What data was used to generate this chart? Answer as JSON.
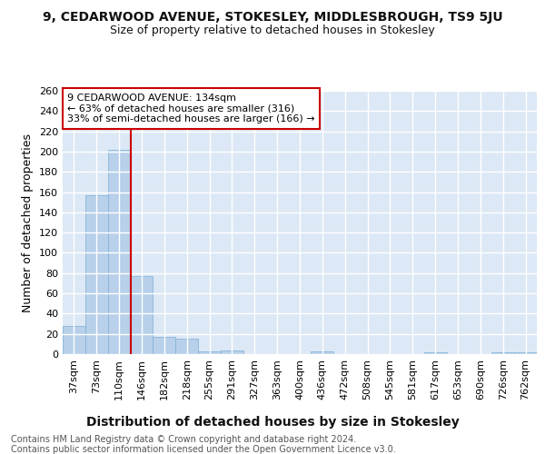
{
  "title": "9, CEDARWOOD AVENUE, STOKESLEY, MIDDLESBROUGH, TS9 5JU",
  "subtitle": "Size of property relative to detached houses in Stokesley",
  "xlabel": "Distribution of detached houses by size in Stokesley",
  "ylabel": "Number of detached properties",
  "bar_color": "#b8d0ea",
  "bar_edge_color": "#7aafd4",
  "categories": [
    "37sqm",
    "73sqm",
    "110sqm",
    "146sqm",
    "182sqm",
    "218sqm",
    "255sqm",
    "291sqm",
    "327sqm",
    "363sqm",
    "400sqm",
    "436sqm",
    "472sqm",
    "508sqm",
    "545sqm",
    "581sqm",
    "617sqm",
    "653sqm",
    "690sqm",
    "726sqm",
    "762sqm"
  ],
  "values": [
    28,
    157,
    202,
    77,
    17,
    15,
    3,
    4,
    0,
    0,
    0,
    3,
    0,
    0,
    0,
    0,
    2,
    0,
    0,
    2,
    2
  ],
  "ylim": [
    0,
    260
  ],
  "yticks": [
    0,
    20,
    40,
    60,
    80,
    100,
    120,
    140,
    160,
    180,
    200,
    220,
    240,
    260
  ],
  "vline_x": 3,
  "vline_color": "#cc0000",
  "annotation_text": "9 CEDARWOOD AVENUE: 134sqm\n← 63% of detached houses are smaller (316)\n33% of semi-detached houses are larger (166) →",
  "annotation_box_color": "#ffffff",
  "annotation_box_edge": "#cc0000",
  "footer_line1": "Contains HM Land Registry data © Crown copyright and database right 2024.",
  "footer_line2": "Contains public sector information licensed under the Open Government Licence v3.0.",
  "bg_color": "#ffffff",
  "plot_bg_color": "#dce8f5",
  "grid_color": "#ffffff",
  "title_fontsize": 10,
  "subtitle_fontsize": 9,
  "axis_label_fontsize": 9,
  "tick_fontsize": 8,
  "footer_fontsize": 7,
  "ann_fontsize": 8
}
